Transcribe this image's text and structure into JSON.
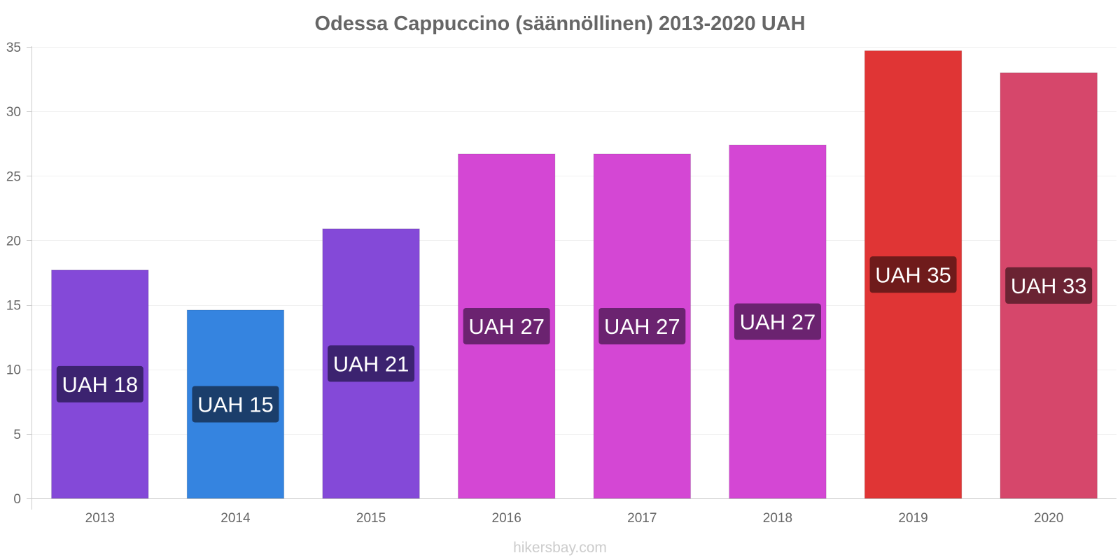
{
  "chart_data": {
    "type": "bar",
    "title": "Odessa Cappuccino (säännöllinen) 2013-2020 UAH",
    "xlabel": "",
    "ylabel": "",
    "categories": [
      "2013",
      "2014",
      "2015",
      "2016",
      "2017",
      "2018",
      "2019",
      "2020"
    ],
    "values": [
      17.7,
      14.6,
      20.9,
      26.7,
      26.7,
      27.4,
      34.7,
      33.0
    ],
    "data_labels": [
      "UAH 18",
      "UAH 15",
      "UAH 21",
      "UAH 27",
      "UAH 27",
      "UAH 27",
      "UAH 35",
      "UAH 33"
    ],
    "colors": [
      "#8449d8",
      "#3584e0",
      "#8449d8",
      "#d447d4",
      "#d447d4",
      "#d447d4",
      "#e03535",
      "#d6476b"
    ],
    "label_bg_colors": [
      "#3c2370",
      "#1b3e6b",
      "#3c2370",
      "#6b2370",
      "#6b2370",
      "#6b2370",
      "#6f1b1b",
      "#6b2333"
    ],
    "ylim": [
      0,
      35
    ],
    "yticks": [
      0,
      5,
      10,
      15,
      20,
      25,
      30,
      35
    ],
    "grid": true,
    "legend": "none"
  },
  "footer": {
    "source": "hikersbay.com"
  }
}
